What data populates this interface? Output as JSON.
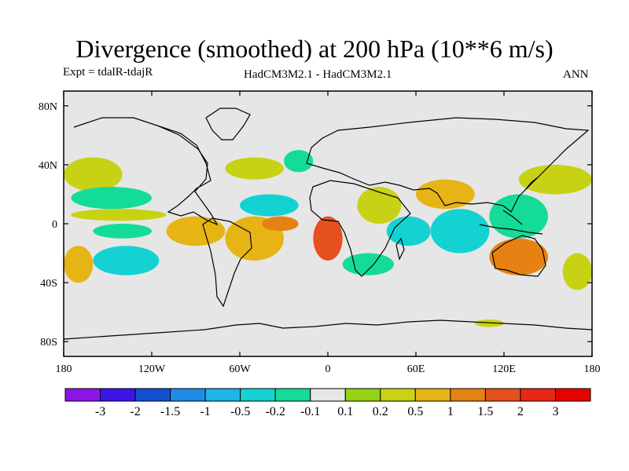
{
  "title": "Divergence (smoothed) at 200 hPa (10**6 m/s)",
  "subtitle_left": "Expt = tdalR-tdajR",
  "subtitle_center": "HadCM3M2.1 - HadCM3M2.1",
  "subtitle_right": "ANN",
  "map": {
    "projection": "cylindrical equidistant",
    "lon_range": [
      -180,
      180
    ],
    "lat_range": [
      -90,
      90
    ],
    "lon_ticks": [
      {
        "value": -180,
        "label": "180"
      },
      {
        "value": -120,
        "label": "120W"
      },
      {
        "value": -60,
        "label": "60W"
      },
      {
        "value": 0,
        "label": "0"
      },
      {
        "value": 60,
        "label": "60E"
      },
      {
        "value": 120,
        "label": "120E"
      },
      {
        "value": 180,
        "label": "180"
      }
    ],
    "lat_ticks": [
      {
        "value": 80,
        "label": "80N"
      },
      {
        "value": 40,
        "label": "40N"
      },
      {
        "value": 0,
        "label": "0"
      },
      {
        "value": -40,
        "label": "40S"
      },
      {
        "value": -80,
        "label": "80S"
      }
    ],
    "background_color": "#e6e6e6",
    "regions": [
      {
        "name": "n-pacific-west",
        "lon": [
          -180,
          -140
        ],
        "lat": [
          22,
          45
        ],
        "value": 0.2
      },
      {
        "name": "pacific-20n",
        "lon": [
          -175,
          -120
        ],
        "lat": [
          10,
          25
        ],
        "value": -0.2
      },
      {
        "name": "pacific-5n",
        "lon": [
          -175,
          -110
        ],
        "lat": [
          2,
          10
        ],
        "value": 0.2
      },
      {
        "name": "pacific-eq",
        "lon": [
          -160,
          -120
        ],
        "lat": [
          -10,
          0
        ],
        "value": -0.2
      },
      {
        "name": "s-pacific-west",
        "lon": [
          -180,
          -160
        ],
        "lat": [
          -40,
          -15
        ],
        "value": 0.5
      },
      {
        "name": "s-pacific-cyan",
        "lon": [
          -160,
          -115
        ],
        "lat": [
          -35,
          -15
        ],
        "value": -0.5
      },
      {
        "name": "e-pacific-trop",
        "lon": [
          -110,
          -70
        ],
        "lat": [
          -15,
          5
        ],
        "value": 0.5
      },
      {
        "name": "brazil",
        "lon": [
          -70,
          -30
        ],
        "lat": [
          -25,
          5
        ],
        "value": 0.5
      },
      {
        "name": "atlantic-sub",
        "lon": [
          -45,
          -20
        ],
        "lat": [
          -5,
          5
        ],
        "value": 1.0
      },
      {
        "name": "n-atlantic",
        "lon": [
          -70,
          -30
        ],
        "lat": [
          30,
          45
        ],
        "value": 0.2
      },
      {
        "name": "trop-atlantic-n",
        "lon": [
          -60,
          -20
        ],
        "lat": [
          5,
          20
        ],
        "value": -0.5
      },
      {
        "name": "gulf-guinea",
        "lon": [
          -10,
          10
        ],
        "lat": [
          -25,
          5
        ],
        "value": 1.5
      },
      {
        "name": "s-atlantic",
        "lon": [
          10,
          45
        ],
        "lat": [
          -35,
          -20
        ],
        "value": -0.2
      },
      {
        "name": "africa-n",
        "lon": [
          20,
          50
        ],
        "lat": [
          0,
          25
        ],
        "value": 0.2
      },
      {
        "name": "indian-w",
        "lon": [
          40,
          70
        ],
        "lat": [
          -15,
          5
        ],
        "value": -0.5
      },
      {
        "name": "india",
        "lon": [
          60,
          100
        ],
        "lat": [
          10,
          30
        ],
        "value": 0.5
      },
      {
        "name": "indian-e",
        "lon": [
          70,
          110
        ],
        "lat": [
          -20,
          10
        ],
        "value": -0.5
      },
      {
        "name": "w-pacific",
        "lon": [
          110,
          150
        ],
        "lat": [
          -10,
          20
        ],
        "value": -0.2
      },
      {
        "name": "australia",
        "lon": [
          110,
          150
        ],
        "lat": [
          -35,
          -10
        ],
        "value": 1.0
      },
      {
        "name": "nw-pacific",
        "lon": [
          130,
          180
        ],
        "lat": [
          20,
          40
        ],
        "value": 0.2
      },
      {
        "name": "s-pacific-east",
        "lon": [
          160,
          180
        ],
        "lat": [
          -45,
          -20
        ],
        "value": 0.2
      },
      {
        "name": "n-eurasia",
        "lon": [
          -30,
          -10
        ],
        "lat": [
          35,
          50
        ],
        "value": -0.2
      },
      {
        "name": "antarctic-patch",
        "lon": [
          100,
          120
        ],
        "lat": [
          -70,
          -65
        ],
        "value": 0.2
      }
    ]
  },
  "colorbar": {
    "levels": [
      "-3",
      "-2",
      "-1.5",
      "-1",
      "-0.5",
      "-0.2",
      "-0.1",
      "0.1",
      "0.2",
      "0.5",
      "1",
      "1.5",
      "2",
      "3"
    ],
    "colors": [
      "#8c14e6",
      "#3c14e6",
      "#1450d2",
      "#1e8ce6",
      "#1eb4e6",
      "#14d2d2",
      "#14dc96",
      "#e6e6e6",
      "#96d214",
      "#c8d214",
      "#e6b414",
      "#e68214",
      "#e6501e",
      "#e62814",
      "#e60000"
    ]
  }
}
